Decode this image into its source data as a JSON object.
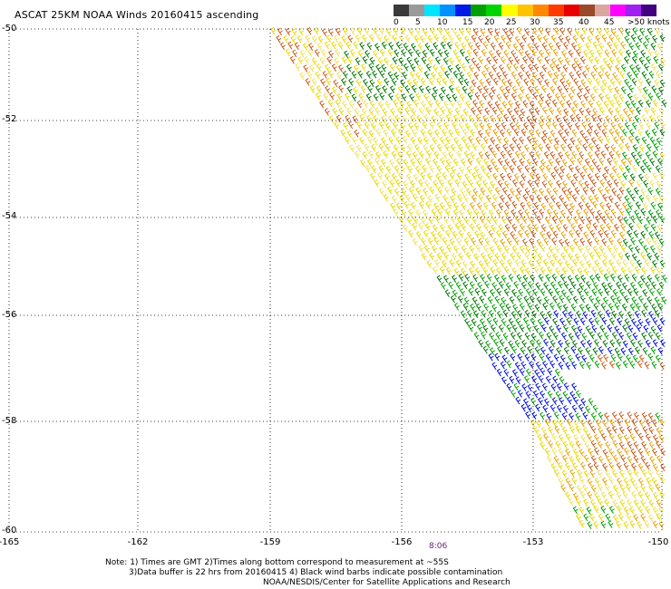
{
  "title": "ASCAT 25KM NOAA Winds 20160415 ascending",
  "colorbar": {
    "colors": [
      "#3a3a3a",
      "#9a9a9a",
      "#00e5ff",
      "#0090ff",
      "#0018e8",
      "#00a000",
      "#00d400",
      "#ffff00",
      "#ffc400",
      "#ff8800",
      "#ff3a00",
      "#e80000",
      "#9a4a2a",
      "#d9a7a0",
      "#ff00ff",
      "#a020f0",
      "#400080"
    ],
    "labels": [
      "0",
      "5",
      "10",
      "15",
      "20",
      "25",
      "30",
      "35",
      "40",
      "45",
      ">50 knots"
    ]
  },
  "map": {
    "lat_labels": [
      "-50",
      "-52",
      "-54",
      "-56",
      "-58",
      "-60"
    ],
    "lon_labels": [
      "-165",
      "-162",
      "-159",
      "-156",
      "-153",
      "-150"
    ],
    "lat_range": [
      -60,
      -50
    ],
    "lon_range": [
      -165,
      -150
    ],
    "gridlines": true
  },
  "wind_colors": {
    "yellow": "#e8d800",
    "yellow_light": "#f0e050",
    "orange": "#e8a000",
    "brown": "#c85a18",
    "green_dark": "#007800",
    "green": "#00a000",
    "blue": "#0010d8",
    "red": "#e02000"
  },
  "time_label": "8:06",
  "notes": {
    "line1": "Note: 1) Times are GMT 2)Times along bottom correspond to measurement at ~55S",
    "line2": "3)Data buffer is 22 hrs from 20160415 4) Black wind barbs indicate possible contamination",
    "line3": "NOAA/NESDIS/Center for Satellite Applications and Research"
  }
}
